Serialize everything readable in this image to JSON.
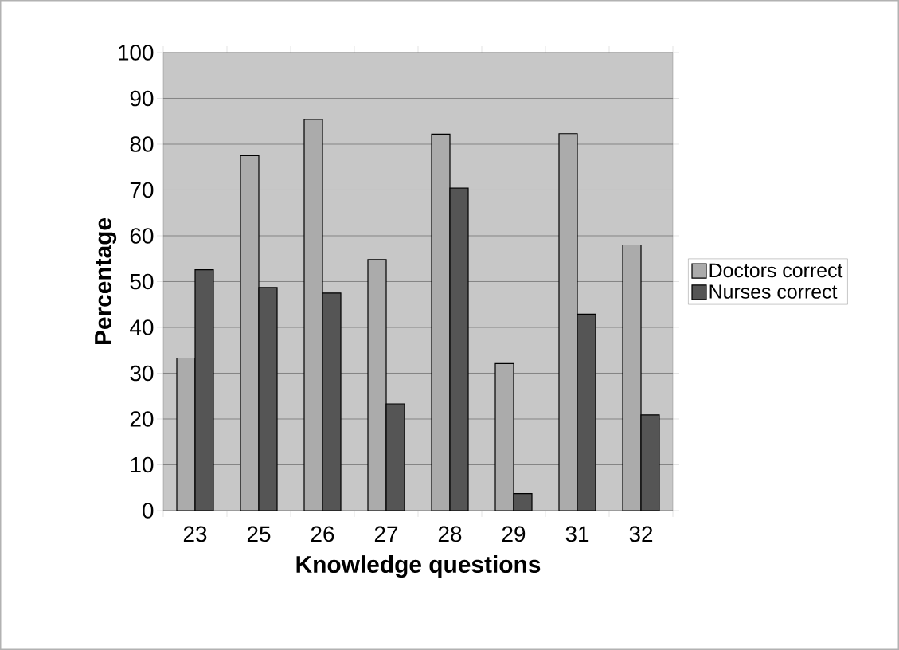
{
  "chart_data": {
    "type": "bar",
    "xlabel": "Knowledge questions",
    "ylabel": "Percentage",
    "categories": [
      "23",
      "25",
      "26",
      "27",
      "28",
      "29",
      "31",
      "32"
    ],
    "series": [
      {
        "name": "Doctors correct",
        "color": "#ababab",
        "values": [
          33.3,
          77.5,
          85.4,
          54.8,
          82.2,
          32.1,
          82.3,
          58.0
        ]
      },
      {
        "name": "Nurses correct",
        "color": "#555555",
        "values": [
          52.6,
          48.7,
          47.5,
          23.3,
          70.4,
          3.7,
          42.9,
          20.9
        ]
      }
    ],
    "ylim": [
      0,
      100
    ],
    "yticks": [
      0,
      10,
      20,
      30,
      40,
      50,
      60,
      70,
      80,
      90,
      100
    ],
    "grid": "y",
    "legend": "right"
  }
}
